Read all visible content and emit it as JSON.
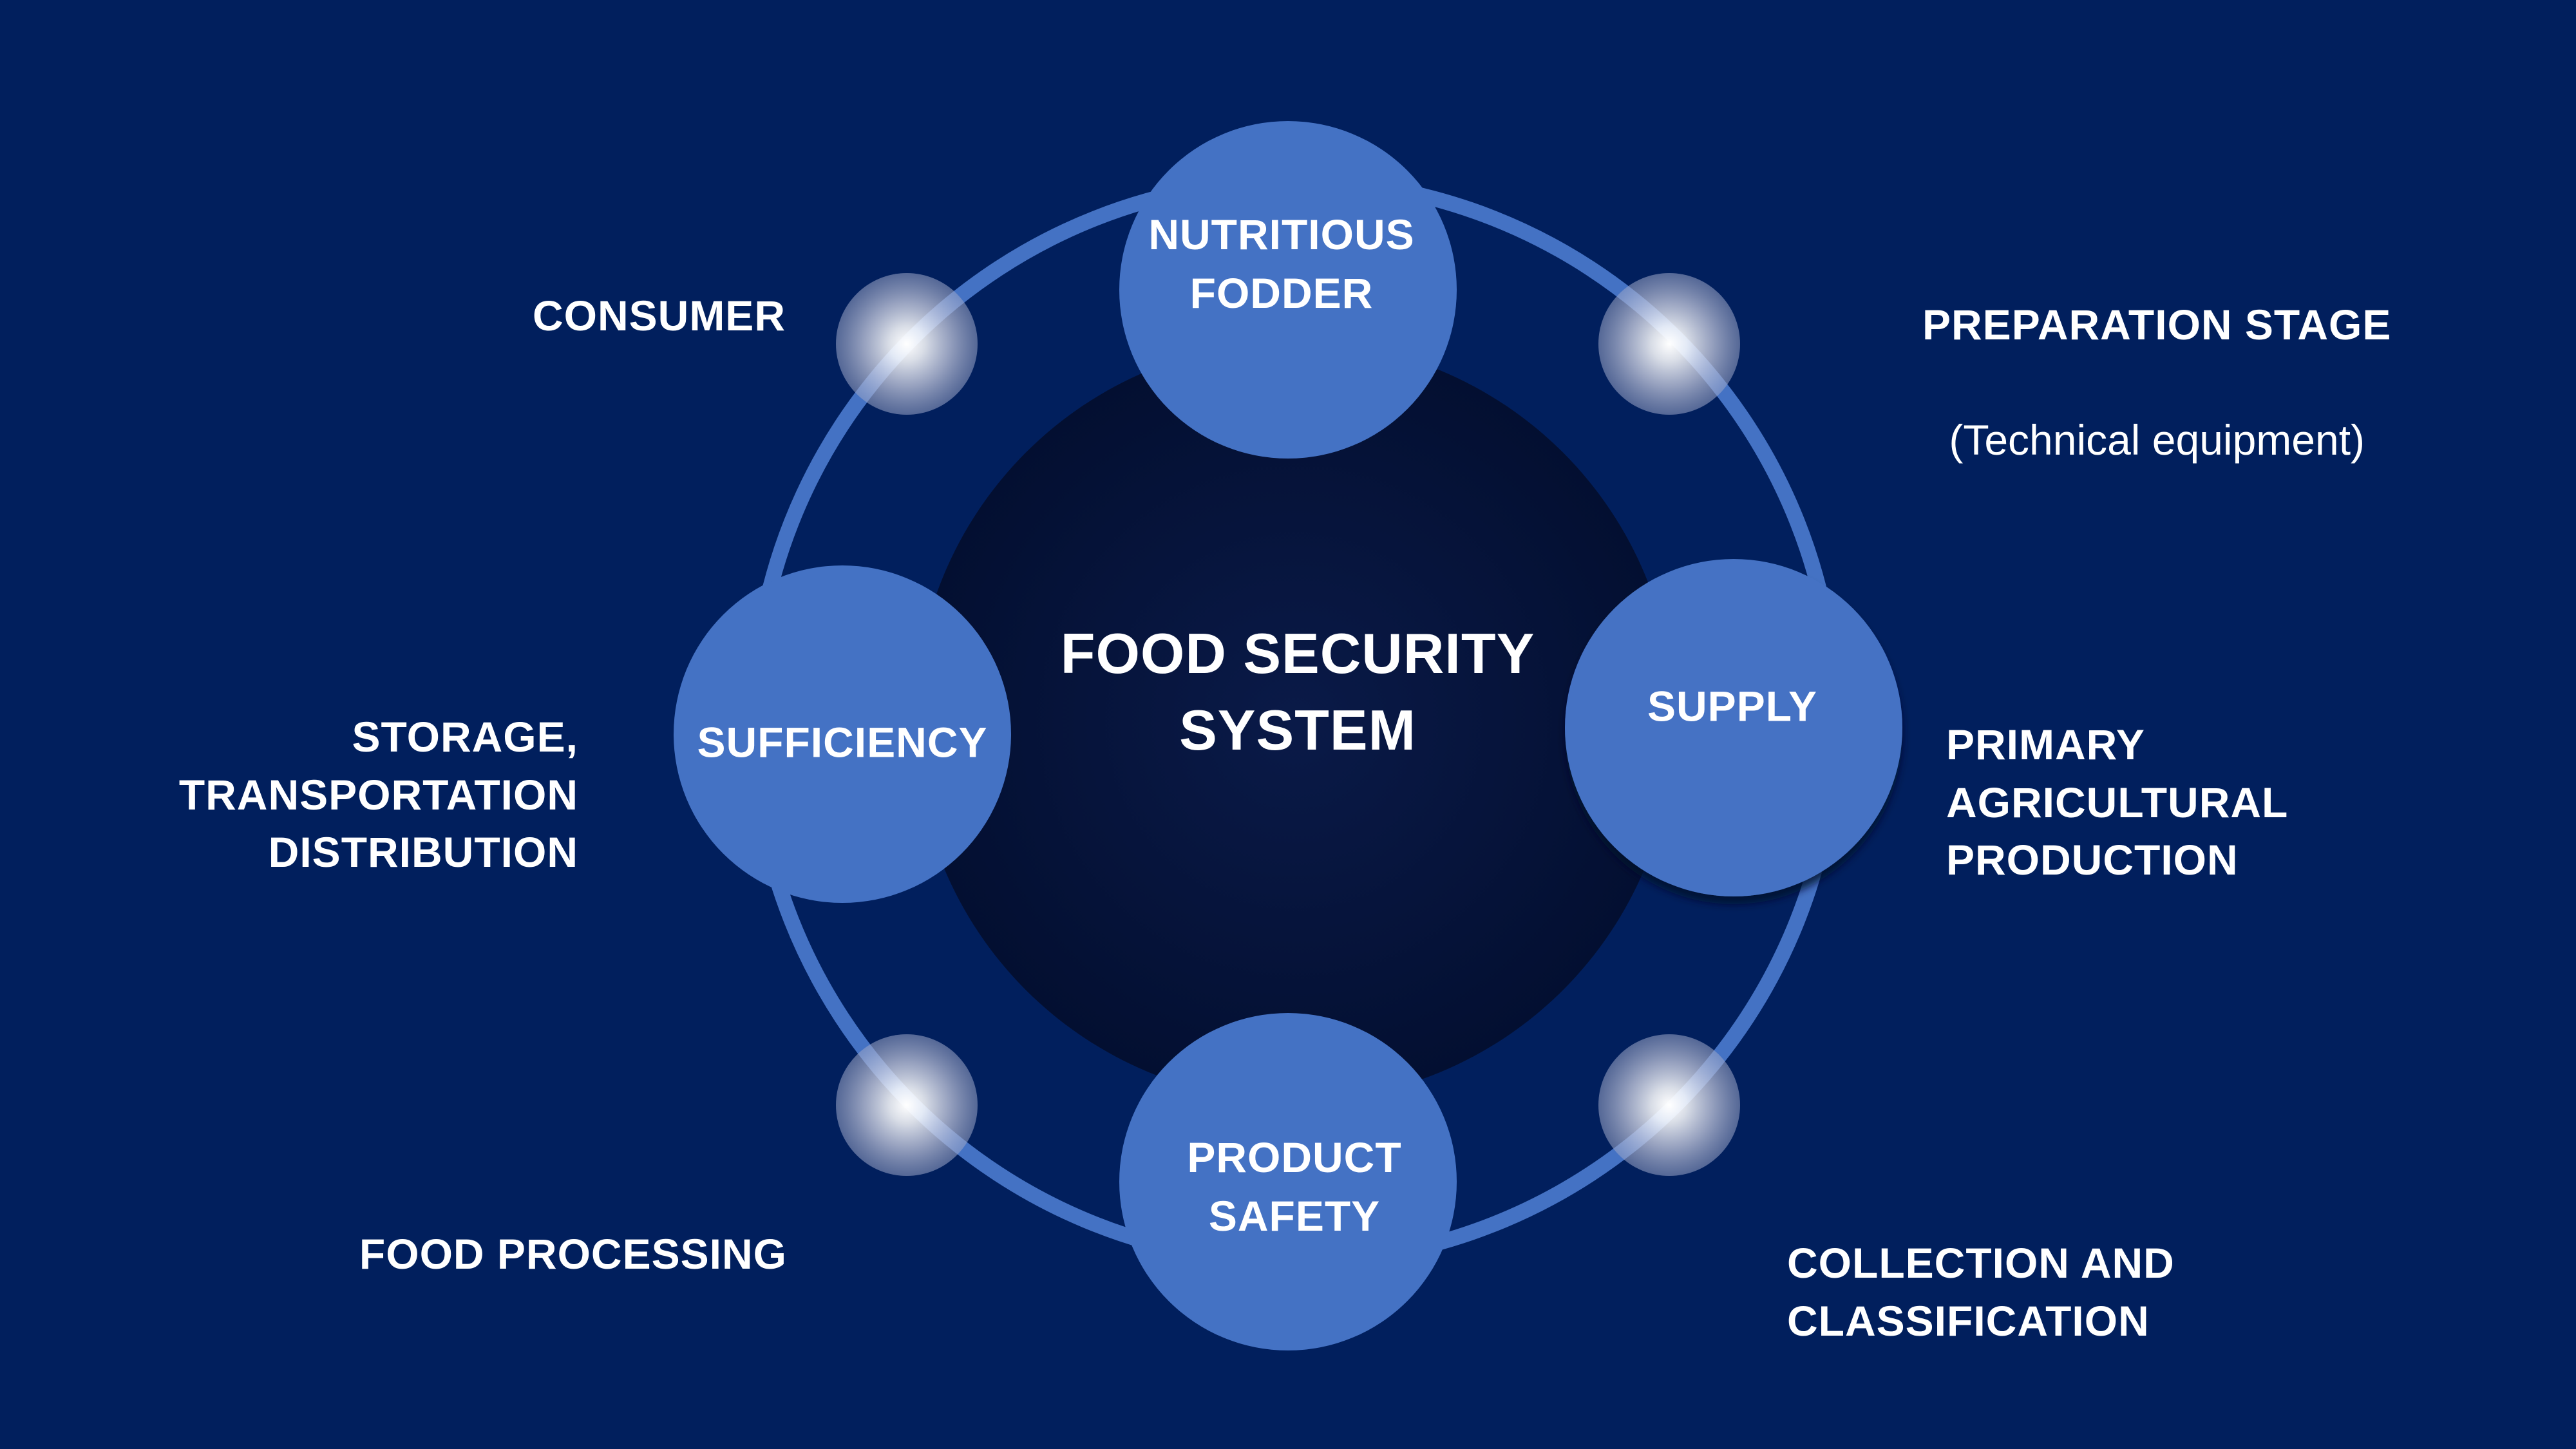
{
  "center": {
    "label": "FOOD SECURITY\nSYSTEM"
  },
  "nodes": [
    {
      "id": "nutritious-fodder",
      "label": "NUTRITIOUS\nFODDER"
    },
    {
      "id": "supply",
      "label": "SUPPLY"
    },
    {
      "id": "product-safety",
      "label": "PRODUCT\nSAFETY"
    },
    {
      "id": "sufficiency",
      "label": "SUFFICIENCY"
    }
  ],
  "annotations": [
    {
      "id": "consumer",
      "label": "CONSUMER",
      "sub": ""
    },
    {
      "id": "preparation-stage",
      "label": "PREPARATION STAGE",
      "sub": "(Technical equipment)"
    },
    {
      "id": "primary-agricultural-production",
      "label": "PRIMARY\nAGRICULTURAL\nPRODUCTION",
      "sub": ""
    },
    {
      "id": "collection-and-classification",
      "label": "COLLECTION AND\nCLASSIFICATION",
      "sub": ""
    },
    {
      "id": "food-processing",
      "label": "FOOD PROCESSING",
      "sub": ""
    },
    {
      "id": "storage-transportation-distribution",
      "label": "STORAGE,\nTRANSPORTATION\nDISTRIBUTION",
      "sub": ""
    }
  ],
  "colors": {
    "background": "#011f5d",
    "core": "#030f31",
    "ring": "#4472c4",
    "node": "#4472c4",
    "glow": "#ffffff",
    "text": "#ffffff"
  }
}
